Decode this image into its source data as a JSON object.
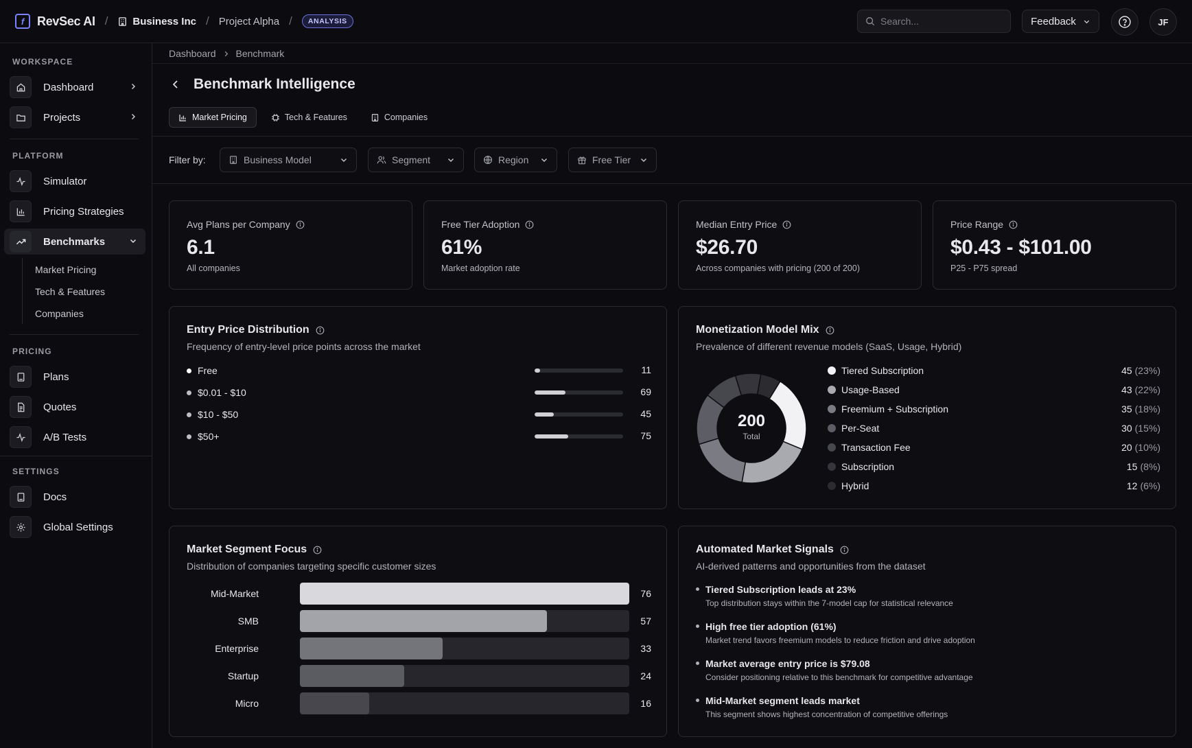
{
  "app": {
    "brand": "RevSec AI",
    "org": "Business Inc",
    "project": "Project Alpha",
    "badge": "ANALYSIS"
  },
  "header": {
    "search_placeholder": "Search...",
    "feedback_label": "Feedback",
    "avatar_initials": "JF"
  },
  "sidebar": {
    "workspace_label": "WORKSPACE",
    "workspace_items": [
      {
        "label": "Dashboard"
      },
      {
        "label": "Projects"
      }
    ],
    "platform_label": "PLATFORM",
    "platform_items": [
      {
        "label": "Simulator"
      },
      {
        "label": "Pricing Strategies"
      },
      {
        "label": "Benchmarks"
      }
    ],
    "benchmark_subitems": [
      "Market Pricing",
      "Tech & Features",
      "Companies"
    ],
    "pricing_label": "PRICING",
    "pricing_items": [
      {
        "label": "Plans"
      },
      {
        "label": "Quotes"
      },
      {
        "label": "A/B Tests"
      }
    ],
    "settings_label": "SETTINGS",
    "settings_items": [
      {
        "label": "Docs"
      },
      {
        "label": "Global Settings"
      }
    ]
  },
  "breadcrumb": [
    "Dashboard",
    "Benchmark"
  ],
  "page": {
    "title": "Benchmark Intelligence",
    "tabs": [
      "Market Pricing",
      "Tech & Features",
      "Companies"
    ],
    "filter_label": "Filter by:",
    "filters": [
      "Business Model",
      "Segment",
      "Region",
      "Free Tier"
    ]
  },
  "stats": [
    {
      "label": "Avg Plans per Company",
      "value": "6.1",
      "sub": "All companies"
    },
    {
      "label": "Free Tier Adoption",
      "value": "61%",
      "sub": "Market adoption rate"
    },
    {
      "label": "Median Entry Price",
      "value": "$26.70",
      "sub": "Across companies with pricing (200 of 200)"
    },
    {
      "label": "Price Range",
      "value": "$0.43 - $101.00",
      "sub": "P25 - P75 spread"
    }
  ],
  "entry_price": {
    "title": "Entry Price Distribution",
    "subtitle": "Frequency of entry-level price points across the market",
    "rows": [
      {
        "label": "Free",
        "count": "11",
        "fraction": 0.05
      },
      {
        "label": "$0.01 - $10",
        "count": "69",
        "fraction": 0.35
      },
      {
        "label": "$10 - $50",
        "count": "45",
        "fraction": 0.22
      },
      {
        "label": "$50+",
        "count": "75",
        "fraction": 0.38
      }
    ]
  },
  "monetization": {
    "title": "Monetization Model Mix",
    "subtitle": "Prevalence of different revenue models (SaaS, Usage, Hybrid)",
    "total": "200",
    "total_label": "Total",
    "items": [
      {
        "label": "Tiered Subscription",
        "count": "45",
        "pct": "(23%)",
        "value": 45,
        "color": "#f2f2f4"
      },
      {
        "label": "Usage-Based",
        "count": "43",
        "pct": "(22%)",
        "value": 43,
        "color": "#a9a9b0"
      },
      {
        "label": "Freemium + Subscription",
        "count": "35",
        "pct": "(18%)",
        "value": 35,
        "color": "#7b7b83"
      },
      {
        "label": "Per-Seat",
        "count": "30",
        "pct": "(15%)",
        "value": 30,
        "color": "#5d5d65"
      },
      {
        "label": "Transaction Fee",
        "count": "20",
        "pct": "(10%)",
        "value": 20,
        "color": "#47474e"
      },
      {
        "label": "Subscription",
        "count": "15",
        "pct": "(8%)",
        "value": 15,
        "color": "#35353b"
      },
      {
        "label": "Hybrid",
        "count": "12",
        "pct": "(6%)",
        "value": 12,
        "color": "#2b2b30"
      }
    ]
  },
  "segment_focus": {
    "title": "Market Segment Focus",
    "subtitle": "Distribution of companies targeting specific customer sizes",
    "rows": [
      {
        "label": "Mid-Market",
        "count": "76",
        "value": 76,
        "color": "#d9d9dd"
      },
      {
        "label": "SMB",
        "count": "57",
        "value": 57,
        "color": "#a3a3aa"
      },
      {
        "label": "Enterprise",
        "count": "33",
        "value": 33,
        "color": "#74747b"
      },
      {
        "label": "Startup",
        "count": "24",
        "value": 24,
        "color": "#5b5b62"
      },
      {
        "label": "Micro",
        "count": "16",
        "value": 16,
        "color": "#47474d"
      }
    ]
  },
  "signals": {
    "title": "Automated Market Signals",
    "subtitle": "AI-derived patterns and opportunities from the dataset",
    "items": [
      {
        "title": "Tiered Subscription leads at 23%",
        "desc": "Top distribution stays within the 7-model cap for statistical relevance"
      },
      {
        "title": "High free tier adoption (61%)",
        "desc": "Market trend favors freemium models to reduce friction and drive adoption"
      },
      {
        "title": "Market average entry price is $79.08",
        "desc": "Consider positioning relative to this benchmark for competitive advantage"
      },
      {
        "title": "Mid-Market segment leads market",
        "desc": "This segment shows highest concentration of competitive offerings"
      }
    ]
  }
}
